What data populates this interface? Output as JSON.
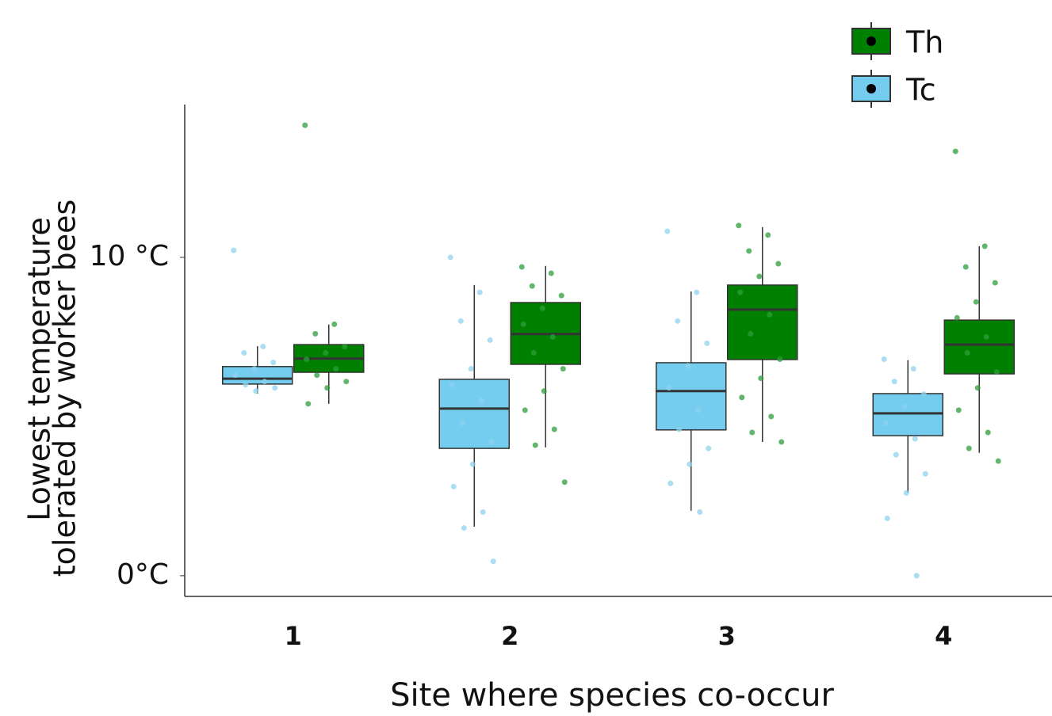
{
  "chart_data": {
    "type": "box",
    "x_label": "Site where species co-occur",
    "y_label": [
      "Lowest temperature",
      "tolerated by worker bees"
    ],
    "categories": [
      "1",
      "2",
      "3",
      "4"
    ],
    "ylim": [
      -0.65,
      14.8
    ],
    "yticks": [
      {
        "value": 0,
        "label": "0°C"
      },
      {
        "value": 10,
        "label": "10 °C"
      }
    ],
    "legend": "top-right",
    "series": [
      {
        "name": "Th",
        "color": "#008000",
        "point_color": "#2e9e3a",
        "boxes": [
          {
            "low": 5.4,
            "q1": 6.39,
            "median": 6.82,
            "q3": 7.26,
            "high": 7.89
          },
          {
            "low": 4.03,
            "q1": 6.64,
            "median": 7.59,
            "q3": 8.58,
            "high": 9.73
          },
          {
            "low": 4.2,
            "q1": 6.79,
            "median": 8.36,
            "q3": 9.13,
            "high": 10.95
          },
          {
            "low": 3.86,
            "q1": 6.34,
            "median": 7.26,
            "q3": 8.03,
            "high": 10.35
          }
        ],
        "points": [
          [
            14.15,
            7.9,
            7.6,
            7.2,
            7.0,
            6.8,
            6.5,
            6.3,
            6.1,
            5.9,
            5.4
          ],
          [
            9.7,
            9.5,
            9.1,
            8.8,
            8.4,
            7.9,
            7.5,
            7.0,
            6.5,
            5.8,
            5.2,
            4.6,
            4.1,
            2.94
          ],
          [
            11.0,
            10.7,
            10.2,
            9.8,
            9.4,
            8.9,
            8.2,
            7.6,
            6.8,
            6.2,
            5.6,
            5.0,
            4.5,
            4.2
          ],
          [
            13.33,
            10.35,
            9.7,
            9.2,
            8.6,
            8.1,
            7.5,
            7.0,
            6.4,
            5.9,
            5.2,
            4.5,
            4.0,
            3.6
          ]
        ]
      },
      {
        "name": "Tc",
        "color": "#74ccee",
        "point_color": "#8fd3ee",
        "boxes": [
          {
            "low": 5.72,
            "q1": 6.02,
            "median": 6.19,
            "q3": 6.57,
            "high": 7.21
          },
          {
            "low": 1.54,
            "q1": 4.0,
            "median": 5.25,
            "q3": 6.17,
            "high": 9.13
          },
          {
            "low": 2.04,
            "q1": 4.58,
            "median": 5.8,
            "q3": 6.69,
            "high": 8.93
          },
          {
            "low": 2.61,
            "q1": 4.4,
            "median": 5.1,
            "q3": 5.72,
            "high": 6.77
          }
        ],
        "points": [
          [
            10.22,
            7.2,
            7.0,
            6.7,
            6.5,
            6.3,
            6.1,
            6.0,
            5.9,
            5.8
          ],
          [
            10.0,
            8.9,
            8.0,
            7.4,
            6.5,
            6.0,
            5.5,
            4.8,
            4.2,
            3.5,
            2.8,
            2.0,
            1.5,
            0.45
          ],
          [
            10.82,
            8.9,
            8.0,
            7.3,
            6.6,
            5.9,
            5.2,
            4.6,
            4.0,
            3.5,
            2.9,
            2.0
          ],
          [
            6.8,
            6.5,
            6.1,
            5.7,
            5.3,
            4.8,
            4.3,
            3.8,
            3.2,
            2.6,
            1.8,
            0
          ]
        ]
      }
    ]
  }
}
